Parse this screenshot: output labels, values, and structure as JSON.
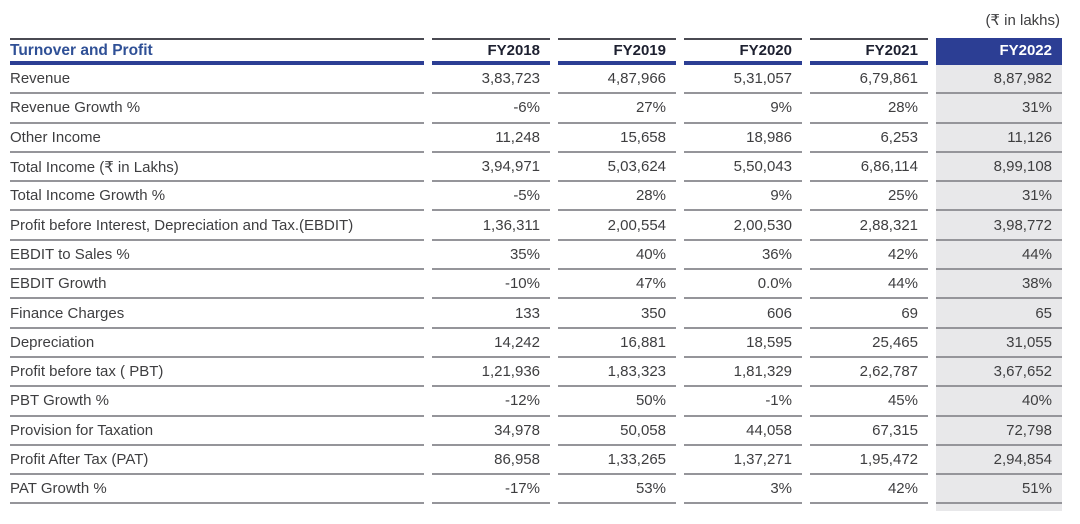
{
  "unit_note": "(₹ in lakhs)",
  "table": {
    "header": {
      "label": "Turnover and Profit",
      "columns": [
        "FY2018",
        "FY2019",
        "FY2020",
        "FY2021",
        "FY2022"
      ],
      "highlight_column": "FY2022"
    },
    "rows": [
      {
        "label": "Revenue",
        "values": [
          "3,83,723",
          "4,87,966",
          "5,31,057",
          "6,79,861",
          "8,87,982"
        ]
      },
      {
        "label": "Revenue Growth %",
        "values": [
          "-6%",
          "27%",
          "9%",
          "28%",
          "31%"
        ]
      },
      {
        "label": "Other Income",
        "values": [
          "11,248",
          "15,658",
          "18,986",
          "6,253",
          "11,126"
        ]
      },
      {
        "label": "Total Income (₹ in Lakhs)",
        "values": [
          "3,94,971",
          "5,03,624",
          "5,50,043",
          "6,86,114",
          "8,99,108"
        ]
      },
      {
        "label": "Total Income Growth %",
        "values": [
          "-5%",
          "28%",
          "9%",
          "25%",
          "31%"
        ]
      },
      {
        "label": "Profit before Interest, Depreciation and Tax.(EBDIT)",
        "values": [
          "1,36,311",
          "2,00,554",
          "2,00,530",
          "2,88,321",
          "3,98,772"
        ]
      },
      {
        "label": "EBDIT to Sales %",
        "values": [
          "35%",
          "40%",
          "36%",
          "42%",
          "44%"
        ]
      },
      {
        "label": "EBDIT Growth",
        "values": [
          "-10%",
          "47%",
          "0.0%",
          "44%",
          "38%"
        ]
      },
      {
        "label": "Finance Charges",
        "values": [
          "133",
          "350",
          "606",
          "69",
          "65"
        ]
      },
      {
        "label": "Depreciation",
        "values": [
          "14,242",
          "16,881",
          "18,595",
          "25,465",
          "31,055"
        ]
      },
      {
        "label": "Profit before tax ( PBT)",
        "values": [
          "1,21,936",
          "1,83,323",
          "1,81,329",
          "2,62,787",
          "3,67,652"
        ]
      },
      {
        "label": "PBT Growth %",
        "values": [
          "-12%",
          "50%",
          "-1%",
          "45%",
          "40%"
        ]
      },
      {
        "label": "Provision for Taxation",
        "values": [
          "34,978",
          "50,058",
          "44,058",
          "67,315",
          "72,798"
        ]
      },
      {
        "label": "Profit After Tax  (PAT)",
        "values": [
          "86,958",
          "1,33,265",
          "1,37,271",
          "1,95,472",
          "2,94,854"
        ]
      },
      {
        "label": "PAT Growth %",
        "values": [
          "-17%",
          "53%",
          "3%",
          "42%",
          "51%"
        ]
      }
    ]
  },
  "chart_data": {
    "type": "table",
    "title": "Turnover and Profit",
    "unit": "₹ in lakhs",
    "categories": [
      "FY2018",
      "FY2019",
      "FY2020",
      "FY2021",
      "FY2022"
    ],
    "series": [
      {
        "name": "Revenue",
        "values": [
          383723,
          487966,
          531057,
          679861,
          887982
        ]
      },
      {
        "name": "Revenue Growth %",
        "values": [
          -6,
          27,
          9,
          28,
          31
        ]
      },
      {
        "name": "Other Income",
        "values": [
          11248,
          15658,
          18986,
          6253,
          11126
        ]
      },
      {
        "name": "Total Income (₹ in Lakhs)",
        "values": [
          394971,
          503624,
          550043,
          686114,
          899108
        ]
      },
      {
        "name": "Total Income Growth %",
        "values": [
          -5,
          28,
          9,
          25,
          31
        ]
      },
      {
        "name": "Profit before Interest, Depreciation and Tax.(EBDIT)",
        "values": [
          136311,
          200554,
          200530,
          288321,
          398772
        ]
      },
      {
        "name": "EBDIT to Sales %",
        "values": [
          35,
          40,
          36,
          42,
          44
        ]
      },
      {
        "name": "EBDIT Growth",
        "values": [
          -10,
          47,
          0.0,
          44,
          38
        ]
      },
      {
        "name": "Finance Charges",
        "values": [
          133,
          350,
          606,
          69,
          65
        ]
      },
      {
        "name": "Depreciation",
        "values": [
          14242,
          16881,
          18595,
          25465,
          31055
        ]
      },
      {
        "name": "Profit before tax ( PBT)",
        "values": [
          121936,
          183323,
          181329,
          262787,
          367652
        ]
      },
      {
        "name": "PBT Growth %",
        "values": [
          -12,
          50,
          -1,
          45,
          40
        ]
      },
      {
        "name": "Provision for Taxation",
        "values": [
          34978,
          50058,
          44058,
          67315,
          72798
        ]
      },
      {
        "name": "Profit After Tax (PAT)",
        "values": [
          86958,
          133265,
          137271,
          195472,
          294854
        ]
      },
      {
        "name": "PAT Growth %",
        "values": [
          -17,
          53,
          3,
          42,
          51
        ]
      }
    ]
  },
  "colors": {
    "accent_navy": "#2c3e94",
    "title_blue": "#2f5096",
    "header_text": "#1d2030",
    "text": "#3e3e40",
    "row_line": "#95959a",
    "top_line": "#4a4a52",
    "highlight_bg": "#e8e8ea"
  }
}
